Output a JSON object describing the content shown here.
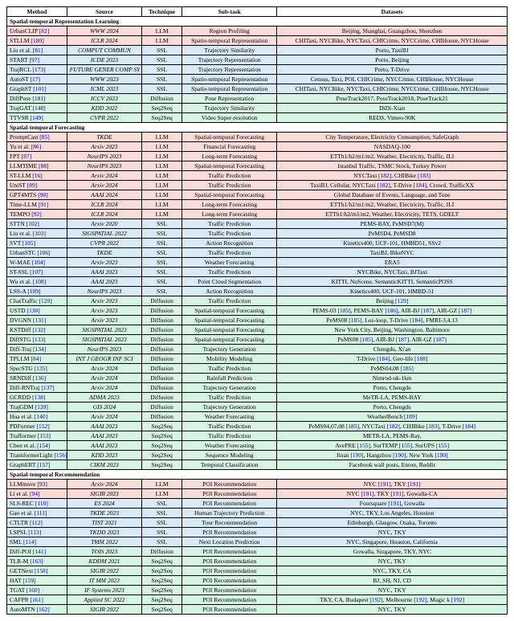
{
  "header": [
    "Method",
    "Source",
    "Technique",
    "Sub-task",
    "Datasets"
  ],
  "sections": [
    {
      "title": "Spatial-temporal Representation Learning",
      "rows": [
        {
          "color": "pink",
          "method": "UrbanCLIP",
          "ref": "[82]",
          "source": "WWW 2024",
          "tech": "LLM",
          "sub": "Region Profiling",
          "data": "Beijing, Shanghai, Guangzhou, Shenzhen"
        },
        {
          "color": "pink",
          "method": "STLLM",
          "ref": "[180]",
          "source": "ICLR 2024",
          "tech": "LLM",
          "sub": "Spatio-temporal Representation",
          "data": "CHITaxi, NYCBike, NYCTaxi, CHICrime, NYCCrime, CHIHouse, NYCHouse"
        },
        {
          "color": "blue",
          "method": "Liu et al.",
          "ref": "[81]",
          "source": "COMPUT COMMUN",
          "tech": "SSL",
          "sub": "Trajectory Similarity",
          "data": "Porto, TaxiBJ"
        },
        {
          "color": "blue",
          "method": "START",
          "ref": "[97]",
          "source": "ICDE 2023",
          "tech": "SSL",
          "sub": "Trajectory Representation",
          "data": "Porto, Beijing"
        },
        {
          "color": "blue",
          "method": "TrajRCL",
          "ref": "[173]",
          "source": "FUTURE GENER COMP SY",
          "tech": "SSL",
          "sub": "Trajectory Representation",
          "data": "Porto, T-Drive"
        },
        {
          "color": "blue",
          "method": "AutoST",
          "ref": "[17]",
          "source": "WWW 2023",
          "tech": "SSL",
          "sub": "Spatio-temporal Representation",
          "data": "Census, Taxi, POI, CHICrime, NYCCrime, CHIHouse, NYCHouse"
        },
        {
          "color": "blue",
          "method": "GraphST",
          "ref": "[101]",
          "source": "ICML 2023",
          "tech": "SSL",
          "sub": "Spatio-temporal Representation",
          "data": "CHITaxi, NYCBike, NYCTaxi, CHICrime, NYCCrime, CHIHouse, NYCHouse"
        },
        {
          "color": "green",
          "method": "DiffPose",
          "ref": "[181]",
          "source": "ICCV 2023",
          "tech": "Diffusion",
          "sub": "Pose Representation",
          "data": "PoseTrack2017, PoseTrack2018, PoseTrack21"
        },
        {
          "color": "green",
          "method": "TrajGAT",
          "ref": "[148]",
          "source": "KDD 2022",
          "tech": "Seq2Seq",
          "sub": "Trajectory Similarity",
          "data": "DiDi-Xian"
        },
        {
          "color": "green",
          "method": "TTVSR",
          "ref": "[149]",
          "source": "CVPR 2022",
          "tech": "Seq2Seq",
          "sub": "Video Super-resolution",
          "data": "REDS, Vimeo-90K"
        }
      ]
    },
    {
      "title": "Spatial-temporal Forecasting",
      "rows": [
        {
          "color": "pink",
          "method": "PromptCast",
          "ref": "[85]",
          "source": "TKDE",
          "tech": "LLM",
          "sub": "Spatial-temporal Forecasting",
          "data": "City Temperature, Electricity Consumption, SafeGraph"
        },
        {
          "color": "pink",
          "method": "Yu et al.",
          "ref": "[86]",
          "source": "Arxiv 2023",
          "tech": "LLM",
          "sub": "Financial Forecasting",
          "data": "NASDAQ-100"
        },
        {
          "color": "pink",
          "method": "FPT",
          "ref": "[87]",
          "source": "NeurIPS 2023",
          "tech": "LLM",
          "sub": "Long-term Forecasting",
          "data": "ETTh1/h2/m1/m2, Weather, Electricity, Traffic, ILI"
        },
        {
          "color": "pink",
          "method": "LLMTIME",
          "ref": "[88]",
          "source": "NeurIPS 2023",
          "tech": "LLM",
          "sub": "Spatial-temporal Forecasting",
          "data": "Istanbul Traffic, TSMC Stock, Turkey Power"
        },
        {
          "color": "pink",
          "method": "ST-LLM",
          "ref": "[16]",
          "source": "Arxiv 2024",
          "tech": "LLM",
          "sub": "Traffic Prediction",
          "data": "NYCTaxi [182], CHIBike [183]"
        },
        {
          "color": "pink",
          "method": "UniST",
          "ref": "[89]",
          "source": "Arxiv 2024",
          "tech": "LLM",
          "sub": "Traffic Prediction",
          "data": "TaxiBJ, Cellular, NYCTaxi [182], T-Drive [184], Crowd, TrafficXX"
        },
        {
          "color": "pink",
          "method": "GPT4MTS",
          "ref": "[90]",
          "source": "AAAI 2024",
          "tech": "LLM",
          "sub": "Spatial-temporal Forecasting",
          "data": "Global Database of Events, Language, and Tone"
        },
        {
          "color": "pink",
          "method": "Time-LLM",
          "ref": "[91]",
          "source": "ICLR 2024",
          "tech": "LLM",
          "sub": "Long-term Forecasting",
          "data": "ETTh1/h2/m1/m2, Weather, Electricity, Traffic, ILI"
        },
        {
          "color": "pink",
          "method": "TEMPO",
          "ref": "[92]",
          "source": "ICLR 2024",
          "tech": "LLM",
          "sub": "Long-term Forecasting",
          "data": "ETTh1/h2/m1/m2, Weather, Electricity, TETS, GDELT"
        },
        {
          "color": "blue",
          "method": "STTN",
          "ref": "[102]",
          "source": "Arxiv 2020",
          "tech": "SSL",
          "sub": "Traffic Prediction",
          "data": "PEMS-BAY, PeMSD7(M)"
        },
        {
          "color": "blue",
          "method": "Liu et al.",
          "ref": "[103]",
          "source": "SIGSPATIAL 2022",
          "tech": "SSL",
          "sub": "Traffic Prediction",
          "data": "PeMSD4, PeMSD8"
        },
        {
          "color": "blue",
          "method": "SVT",
          "ref": "[105]",
          "source": "CVPR 2022",
          "tech": "SSL",
          "sub": "Action Recognition",
          "data": "Kinetics400, UCF-101, HMBD51, SSv2"
        },
        {
          "color": "blue",
          "method": "UrbanSTC",
          "ref": "[106]",
          "source": "TKDE",
          "tech": "SSL",
          "sub": "Traffic Prediction",
          "data": "TaxiBJ, BikeNYC"
        },
        {
          "color": "blue",
          "method": "W-MAE",
          "ref": "[104]",
          "source": "Arxiv 2023",
          "tech": "SSL",
          "sub": "Weather Forecasting",
          "data": "ERA5"
        },
        {
          "color": "blue",
          "method": "ST-SSL",
          "ref": "[107]",
          "source": "AAAI 2023",
          "tech": "SSL",
          "sub": "Traffic Prediction",
          "data": "NYCBike, NYCTaxi, BJTaxi"
        },
        {
          "color": "blue",
          "method": "Wu et al.",
          "ref": "[108]",
          "source": "AAAI 2023",
          "tech": "SSL",
          "sub": "Point Cloud Segmentation",
          "data": "KITTI, NuScene, SemanticKITTI, SemanticPOSS"
        },
        {
          "color": "blue",
          "method": "LSS-A",
          "ref": "[109]",
          "source": "NeurIPS 2023",
          "tech": "SSL",
          "sub": "Action Recognition",
          "data": "Kinetics400, UCF-101, HMBD-51"
        },
        {
          "color": "green",
          "method": "ChatTraffic",
          "ref": "[129]",
          "source": "Arxiv 2023",
          "tech": "Diffusion",
          "sub": "Traffic Prediction",
          "data": "Beijing [129]"
        },
        {
          "color": "green",
          "method": "USTD",
          "ref": "[130]",
          "source": "Arxiv 2023",
          "tech": "Diffusion",
          "sub": "Spatial-temporal Forecasting",
          "data": "PEMS-03 [185], PEMS-BAY [186], AIR-BJ [187], AIR-GZ [187]"
        },
        {
          "color": "green",
          "method": "DVGNN",
          "ref": "[131]",
          "source": "Arxiv 2023",
          "tech": "Diffusion",
          "sub": "Spatial-temporal Forecasting",
          "data": "PeMS08 [185], Los-loop, T-Drive [184], FMRI-3,4,13"
        },
        {
          "color": "green",
          "method": "KSTDiff",
          "ref": "[132]",
          "source": "SIGSPATIAL 2023",
          "tech": "Diffusion",
          "sub": "Spatial-temporal Forecasting",
          "data": "New York City, Beijing, Washington, Baltimore"
        },
        {
          "color": "green",
          "method": "DiffSTG",
          "ref": "[133]",
          "source": "SIGSPATIAL 2023",
          "tech": "Diffusion",
          "sub": "Spatial-temporal Forecasting",
          "data": "PeMS08 [185], AIR-BJ [187], AIR-GZ [187]"
        },
        {
          "color": "green",
          "method": "Diff-Traj",
          "ref": "[134]",
          "source": "NeurIPS 2023",
          "tech": "Diffusion",
          "sub": "Trajectory Generation",
          "data": "Chengdu, Xi'an"
        },
        {
          "color": "green",
          "method": "TPLLM",
          "ref": "[84]",
          "source": "INT J GEOGR INF SCI",
          "tech": "Diffusion",
          "sub": "Mobility Modeling",
          "data": "T-Drive [184], Geo-life [188]"
        },
        {
          "color": "green",
          "method": "SpecSTG",
          "ref": "[135]",
          "source": "Arxiv 2024",
          "tech": "Diffusion",
          "sub": "Traffic Prediction",
          "data": "PeMS04,08 [185]"
        },
        {
          "color": "green",
          "method": "SRNDiff",
          "ref": "[136]",
          "source": "Arxiv 2024",
          "tech": "Diffusion",
          "sub": "Rainfall Prediction",
          "data": "Nimrod-uk-1km"
        },
        {
          "color": "green",
          "method": "Diff-RNTraj",
          "ref": "[137]",
          "source": "Arxiv 2024",
          "tech": "Diffusion",
          "sub": "Trajectory Generation",
          "data": "Porto, Chengdu"
        },
        {
          "color": "green",
          "method": "GCRDD",
          "ref": "[138]",
          "source": "ADMA 2023",
          "tech": "Diffusion",
          "sub": "Traffic Prediction",
          "data": "MeTR-LA, PEMS-BAY"
        },
        {
          "color": "green",
          "method": "TrajGDM",
          "ref": "[139]",
          "source": "GIS 2024",
          "tech": "Diffusion",
          "sub": "Trajectory Generation",
          "data": "Porto, Chengdu"
        },
        {
          "color": "green",
          "method": "Hua et al.",
          "ref": "[140]",
          "source": "Arxiv 2024",
          "tech": "Diffusion",
          "sub": "Weather Forecasting",
          "data": "WeatherBench [189]"
        },
        {
          "color": "green",
          "method": "PDFormer",
          "ref": "[152]",
          "source": "AAAI 2023",
          "tech": "Seq2Seq",
          "sub": "Traffic Prediction",
          "data": "PeMS04,07,08 [185], NYCTaxi [182], CHIBike [183], T-Drive [184]"
        },
        {
          "color": "green",
          "method": "Trafformer",
          "ref": "[153]",
          "source": "AAAI 2023",
          "tech": "Seq2Seq",
          "sub": "Traffic Prediction",
          "data": "METR-LA, PEMS-Bay,"
        },
        {
          "color": "green",
          "method": "Chen et al.",
          "ref": "[154]",
          "source": "AAAI 2023",
          "tech": "Seq2Seq",
          "sub": "Weather Forecasting",
          "data": "AvePRE [155], SurTEMP [155], SurUPS [155]"
        },
        {
          "color": "green",
          "method": "TransformerLight",
          "ref": "[156]",
          "source": "KDD 2023",
          "tech": "Seq2Seq",
          "sub": "Sequence Modeling",
          "data": "Jinan [190], Hangzhou [190], New York [190]"
        },
        {
          "color": "green",
          "method": "GraphERT",
          "ref": "[157]",
          "source": "CIKM 2023",
          "tech": "Seq2Seq",
          "sub": "Temporal Classification",
          "data": "Facebook wall posts, Enron, Reddit"
        }
      ]
    },
    {
      "title": "Spatial-temporal Recommendation",
      "rows": [
        {
          "color": "pink",
          "method": "LLMmove",
          "ref": "[93]",
          "source": "Arxiv 2024",
          "tech": "LLM",
          "sub": "POI Recommendation",
          "data": "NYC [191], TKY [191]"
        },
        {
          "color": "pink",
          "method": "Li et al.",
          "ref": "[94]",
          "source": "SIGIR 2023",
          "tech": "LLM",
          "sub": "POI Recommendation",
          "data": "NYC [191], TKY [191], Gowalla-CA"
        },
        {
          "color": "blue",
          "method": "SLS-REC",
          "ref": "[110]",
          "source": "ES 2024",
          "tech": "SSL",
          "sub": "POI Recommendation",
          "data": "Foursquare [191], Gowalla"
        },
        {
          "color": "blue",
          "method": "Gao et al.",
          "ref": "[111]",
          "source": "TKDE 2023",
          "tech": "SSL",
          "sub": "Human Trajectory Prediction",
          "data": "NYC, TKY, Los Angeles, Houston"
        },
        {
          "color": "blue",
          "method": "CTLTR",
          "ref": "[112]",
          "source": "TIST 2021",
          "tech": "SSL",
          "sub": "Tour Recommendation",
          "data": "Edinburgh, Glasgow, Osaka, Toronto"
        },
        {
          "color": "blue",
          "method": "LSPSL",
          "ref": "[113]",
          "source": "TKDD 2023",
          "tech": "SSL",
          "sub": "POI Recommendation",
          "data": "NYC, TKY"
        },
        {
          "color": "blue",
          "method": "SML",
          "ref": "[114]",
          "source": "TMM 2022",
          "tech": "SSL",
          "sub": "Next Location Prediction",
          "data": "NYC, Singapore, Houston, California"
        },
        {
          "color": "green",
          "method": "Diff-POI",
          "ref": "[141]",
          "source": "TOIS 2023",
          "tech": "Diffusion",
          "sub": "POI Recommendation",
          "data": "Gowalla, Singapore, TKY, NYC"
        },
        {
          "color": "green",
          "method": "TLR-M",
          "ref": "[163]",
          "source": "KDDM 2021",
          "tech": "Seq2Seq",
          "sub": "POI Recommendation",
          "data": "NYC, TKY"
        },
        {
          "color": "green",
          "method": "GETNext",
          "ref": "[158]",
          "source": "SIGIR 2022",
          "tech": "Seq2Seq",
          "sub": "POI Recommendation",
          "data": "NYC, TKY, CA"
        },
        {
          "color": "green",
          "method": "HAT",
          "ref": "[159]",
          "source": "IT MM 2023",
          "tech": "Seq2Seq",
          "sub": "POI Recommendation",
          "data": "BJ, SH, NJ, CD"
        },
        {
          "color": "green",
          "method": "TGAT",
          "ref": "[160]",
          "source": "IF Systems 2023",
          "tech": "Seq2Seq",
          "sub": "POI Recommendation",
          "data": "NYC, TKY"
        },
        {
          "color": "green",
          "method": "CAFPR",
          "ref": "[161]",
          "source": "Applied SC 2022",
          "tech": "Seq2Seq",
          "sub": "POI Recommendation",
          "data": "TKY, CA, Budapest [192], Melbourne [192], Magic k [192]"
        },
        {
          "color": "green",
          "method": "AutoMTN",
          "ref": "[162]",
          "source": "SIGIR 2022",
          "tech": "Seq2Seq",
          "sub": "POI Recommendation",
          "data": "NYC, TKY"
        }
      ]
    }
  ],
  "colors": {
    "pink": "#fadbd8",
    "blue": "#d6eaf8",
    "green": "#d5f5e3",
    "ref": "#0000cc"
  }
}
